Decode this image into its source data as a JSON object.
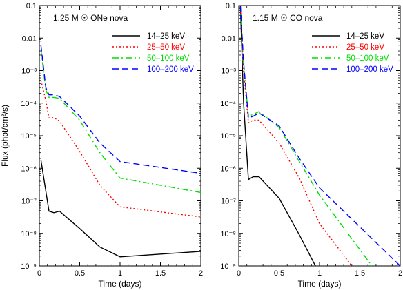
{
  "figure": {
    "ylabel": "Flux (phot/cm²/s)"
  },
  "chart_data": [
    {
      "type": "line",
      "title": "1.25 M ☉ ONe nova",
      "xlabel": "Time (days)",
      "ylabel": "Flux (phot/cm²/s)",
      "xlim": [
        0,
        2
      ],
      "ylim": [
        1e-09,
        0.1
      ],
      "y_scale": "log",
      "x_ticks": [
        0,
        0.5,
        1,
        1.5,
        2
      ],
      "x_tick_labels": [
        "0",
        "0.5",
        "1",
        "1.5",
        "2"
      ],
      "y_ticks": [
        1e-09,
        1e-08,
        1e-07,
        1e-06,
        1e-05,
        0.0001,
        0.001,
        0.01,
        0.1
      ],
      "y_tick_labels": [
        "10⁻⁹",
        "10⁻⁸",
        "10⁻⁷",
        "10⁻⁶",
        "10⁻⁵",
        "10⁻⁴",
        "10⁻³",
        "0.01",
        "0.1"
      ],
      "legend_position": "top-right",
      "series": [
        {
          "name": "14–25 keV",
          "color": "#000000",
          "dash": "solid",
          "x": [
            0.02,
            0.12,
            0.18,
            0.25,
            0.5,
            0.75,
            1.0,
            2.0
          ],
          "y": [
            1.8e-06,
            4.8e-08,
            4.3e-08,
            4.8e-08,
            1.4e-08,
            3.8e-09,
            1.9e-09,
            2.8e-09
          ]
        },
        {
          "name": "25–50 keV",
          "color": "#ff0000",
          "dash": "dotted",
          "x": [
            0.02,
            0.08,
            0.12,
            0.18,
            0.25,
            0.5,
            0.75,
            1.0,
            2.0
          ],
          "y": [
            0.0005,
            0.00012,
            3.5e-05,
            3.6e-05,
            2.8e-05,
            3.3e-06,
            3e-07,
            6.5e-08,
            3.2e-08
          ]
        },
        {
          "name": "50–100 keV",
          "color": "#00dd00",
          "dash": "dashdot",
          "x": [
            0.02,
            0.08,
            0.12,
            0.18,
            0.25,
            0.5,
            0.75,
            1.0,
            2.0
          ],
          "y": [
            0.0045,
            0.00025,
            0.00015,
            0.00015,
            0.00014,
            3e-05,
            3e-06,
            5e-07,
            1.8e-07
          ]
        },
        {
          "name": "100–200 keV",
          "color": "#0000ff",
          "dash": "dashed",
          "x": [
            0.02,
            0.08,
            0.12,
            0.18,
            0.25,
            0.5,
            0.75,
            1.0,
            2.0
          ],
          "y": [
            0.006,
            0.0003,
            0.00018,
            0.00018,
            0.00016,
            4e-05,
            6e-06,
            1.6e-06,
            7e-07
          ]
        }
      ]
    },
    {
      "type": "line",
      "title": "1.15 M ☉ CO nova",
      "xlabel": "Time (days)",
      "ylabel": "",
      "xlim": [
        0,
        2
      ],
      "ylim": [
        1e-09,
        0.1
      ],
      "y_scale": "log",
      "x_ticks": [
        0,
        0.5,
        1,
        1.5,
        2
      ],
      "x_tick_labels": [
        "0",
        "0.5",
        "1",
        "1.5",
        "2"
      ],
      "y_ticks": [
        1e-09,
        1e-08,
        1e-07,
        1e-06,
        1e-05,
        0.0001,
        0.001,
        0.01,
        0.1
      ],
      "y_tick_labels": [
        "10⁻⁹",
        "10⁻⁸",
        "10⁻⁷",
        "10⁻⁶",
        "10⁻⁵",
        "10⁻⁴",
        "10⁻³",
        "0.01",
        "0.1"
      ],
      "legend_position": "top-right",
      "series": [
        {
          "name": "14–25 keV",
          "color": "#000000",
          "dash": "solid",
          "x": [
            0.02,
            0.06,
            0.12,
            0.18,
            0.25,
            0.5,
            0.75,
            0.95
          ],
          "y": [
            0.1,
            0.0001,
            4.5e-07,
            5.5e-07,
            5.5e-07,
            1.2e-07,
            9e-09,
            1e-09
          ]
        },
        {
          "name": "25–50 keV",
          "color": "#ff0000",
          "dash": "dotted",
          "x": [
            0.02,
            0.06,
            0.12,
            0.18,
            0.25,
            0.5,
            0.75,
            1.0,
            1.4
          ],
          "y": [
            0.1,
            0.001,
            2.5e-05,
            3e-05,
            3e-05,
            6e-06,
            5e-07,
            2e-08,
            1e-09
          ]
        },
        {
          "name": "50–100 keV",
          "color": "#00dd00",
          "dash": "dashdot",
          "x": [
            0.02,
            0.06,
            0.12,
            0.18,
            0.25,
            0.5,
            0.75,
            1.0,
            1.65
          ],
          "y": [
            0.1,
            0.0015,
            4e-05,
            4.5e-05,
            5.5e-05,
            1.8e-05,
            1.6e-06,
            1.5e-07,
            1e-09
          ]
        },
        {
          "name": "100–200 keV",
          "color": "#0000ff",
          "dash": "dashed",
          "x": [
            0.02,
            0.06,
            0.12,
            0.18,
            0.25,
            0.5,
            0.75,
            1.0,
            2.0
          ],
          "y": [
            0.1,
            0.0018,
            3.5e-05,
            4e-05,
            5e-05,
            2e-05,
            2e-06,
            2.5e-07,
            1e-09
          ]
        }
      ]
    }
  ]
}
